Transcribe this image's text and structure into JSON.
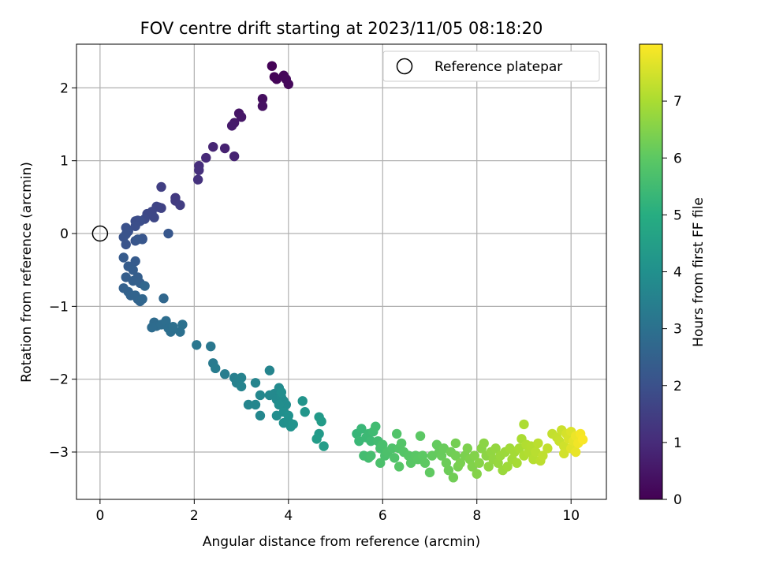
{
  "chart_data": {
    "type": "scatter",
    "title": "FOV centre drift starting at 2023/11/05 08:18:20",
    "xlabel": "Angular distance from reference (arcmin)",
    "ylabel": "Rotation from reference (arcmin)",
    "xlim": [
      -0.5,
      10.75
    ],
    "ylim": [
      -3.65,
      2.6
    ],
    "xticks": [
      0,
      2,
      4,
      6,
      8,
      10
    ],
    "yticks": [
      -3,
      -2,
      -1,
      0,
      1,
      2
    ],
    "grid": true,
    "legend_position": "top-right",
    "legend": [
      {
        "label": "Reference platepar",
        "marker": "open-circle"
      }
    ],
    "reference_point": {
      "x": 0,
      "y": 0
    },
    "colorbar": {
      "label": "Hours from first FF file",
      "colormap": "viridis",
      "range": [
        0,
        8
      ],
      "ticks": [
        0,
        1,
        2,
        3,
        4,
        5,
        6,
        7
      ]
    },
    "points": [
      [
        3.65,
        2.3,
        0.05
      ],
      [
        3.7,
        2.15,
        0.08
      ],
      [
        3.75,
        2.12,
        0.1
      ],
      [
        3.9,
        2.17,
        0.12
      ],
      [
        3.95,
        2.12,
        0.15
      ],
      [
        4.0,
        2.05,
        0.18
      ],
      [
        3.45,
        1.85,
        0.3
      ],
      [
        3.45,
        1.75,
        0.35
      ],
      [
        2.95,
        1.65,
        0.45
      ],
      [
        3.0,
        1.6,
        0.5
      ],
      [
        2.85,
        1.52,
        0.55
      ],
      [
        2.8,
        1.48,
        0.6
      ],
      [
        2.65,
        1.17,
        0.75
      ],
      [
        2.85,
        1.06,
        0.8
      ],
      [
        2.4,
        1.19,
        0.85
      ],
      [
        2.25,
        1.04,
        0.95
      ],
      [
        2.1,
        0.93,
        1.05
      ],
      [
        2.1,
        0.87,
        1.1
      ],
      [
        2.08,
        0.74,
        1.15
      ],
      [
        1.6,
        0.49,
        1.35
      ],
      [
        1.6,
        0.45,
        1.4
      ],
      [
        1.7,
        0.39,
        1.45
      ],
      [
        1.3,
        0.64,
        1.5
      ],
      [
        1.25,
        0.36,
        1.55
      ],
      [
        1.3,
        0.35,
        1.6
      ],
      [
        1.2,
        0.37,
        1.65
      ],
      [
        1.1,
        0.3,
        1.7
      ],
      [
        1.15,
        0.22,
        1.72
      ],
      [
        1.0,
        0.27,
        1.75
      ],
      [
        0.95,
        0.2,
        1.8
      ],
      [
        0.8,
        0.18,
        1.85
      ],
      [
        0.75,
        0.17,
        1.9
      ],
      [
        0.85,
        0.17,
        1.92
      ],
      [
        0.75,
        0.1,
        1.95
      ],
      [
        0.55,
        0.08,
        2.0
      ],
      [
        0.6,
        0.03,
        2.02
      ],
      [
        0.55,
        -0.01,
        2.05
      ],
      [
        0.5,
        -0.05,
        2.08
      ],
      [
        0.55,
        -0.15,
        2.1
      ],
      [
        0.75,
        -0.1,
        2.12
      ],
      [
        0.9,
        -0.08,
        2.15
      ],
      [
        0.9,
        -0.07,
        2.17
      ],
      [
        0.8,
        -0.08,
        2.18
      ],
      [
        1.45,
        0.0,
        2.2
      ],
      [
        0.5,
        -0.33,
        2.3
      ],
      [
        0.75,
        -0.38,
        2.32
      ],
      [
        0.6,
        -0.45,
        2.35
      ],
      [
        0.7,
        -0.5,
        2.38
      ],
      [
        0.55,
        -0.6,
        2.4
      ],
      [
        0.8,
        -0.6,
        2.42
      ],
      [
        0.7,
        -0.65,
        2.45
      ],
      [
        0.85,
        -0.68,
        2.48
      ],
      [
        0.5,
        -0.75,
        2.5
      ],
      [
        0.6,
        -0.8,
        2.52
      ],
      [
        0.65,
        -0.85,
        2.55
      ],
      [
        0.75,
        -0.85,
        2.58
      ],
      [
        0.8,
        -0.9,
        2.6
      ],
      [
        0.85,
        -0.93,
        2.62
      ],
      [
        0.9,
        -0.9,
        2.65
      ],
      [
        0.95,
        -0.72,
        2.68
      ],
      [
        1.35,
        -0.89,
        2.7
      ],
      [
        1.15,
        -1.22,
        2.8
      ],
      [
        1.2,
        -1.27,
        2.82
      ],
      [
        1.1,
        -1.29,
        2.85
      ],
      [
        1.3,
        -1.25,
        2.88
      ],
      [
        1.4,
        -1.2,
        2.9
      ],
      [
        1.45,
        -1.3,
        2.92
      ],
      [
        1.5,
        -1.35,
        2.94
      ],
      [
        1.55,
        -1.28,
        2.96
      ],
      [
        1.7,
        -1.35,
        2.98
      ],
      [
        1.75,
        -1.25,
        3.0
      ],
      [
        2.05,
        -1.53,
        3.15
      ],
      [
        2.35,
        -1.55,
        3.2
      ],
      [
        2.4,
        -1.78,
        3.3
      ],
      [
        2.45,
        -1.85,
        3.35
      ],
      [
        2.65,
        -1.93,
        3.4
      ],
      [
        2.85,
        -1.98,
        3.45
      ],
      [
        2.95,
        -2.0,
        3.5
      ],
      [
        2.9,
        -2.05,
        3.52
      ],
      [
        3.0,
        -1.98,
        3.55
      ],
      [
        3.0,
        -2.1,
        3.58
      ],
      [
        3.3,
        -2.05,
        3.6
      ],
      [
        3.6,
        -1.88,
        3.62
      ],
      [
        3.15,
        -2.35,
        3.65
      ],
      [
        3.3,
        -2.35,
        3.68
      ],
      [
        3.4,
        -2.5,
        3.7
      ],
      [
        3.4,
        -2.22,
        3.72
      ],
      [
        3.6,
        -2.22,
        3.75
      ],
      [
        3.7,
        -2.2,
        3.77
      ],
      [
        3.75,
        -2.28,
        3.8
      ],
      [
        3.8,
        -2.12,
        3.82
      ],
      [
        3.85,
        -2.25,
        3.85
      ],
      [
        3.9,
        -2.3,
        3.87
      ],
      [
        3.95,
        -2.35,
        3.9
      ],
      [
        3.85,
        -2.18,
        3.92
      ],
      [
        3.8,
        -2.35,
        3.93
      ],
      [
        3.75,
        -2.5,
        3.95
      ],
      [
        3.9,
        -2.45,
        3.97
      ],
      [
        3.9,
        -2.6,
        4.0
      ],
      [
        4.0,
        -2.5,
        4.02
      ],
      [
        4.0,
        -2.58,
        4.05
      ],
      [
        4.05,
        -2.65,
        4.08
      ],
      [
        4.1,
        -2.62,
        4.1
      ],
      [
        4.3,
        -2.3,
        4.15
      ],
      [
        4.35,
        -2.45,
        4.2
      ],
      [
        4.65,
        -2.52,
        4.3
      ],
      [
        4.65,
        -2.75,
        4.35
      ],
      [
        4.7,
        -2.58,
        4.38
      ],
      [
        4.6,
        -2.82,
        4.4
      ],
      [
        4.75,
        -2.92,
        4.45
      ],
      [
        5.45,
        -2.75,
        5.3
      ],
      [
        5.55,
        -2.68,
        5.35
      ],
      [
        5.5,
        -2.85,
        5.38
      ],
      [
        5.65,
        -2.8,
        5.4
      ],
      [
        5.7,
        -2.75,
        5.42
      ],
      [
        5.75,
        -2.85,
        5.45
      ],
      [
        5.8,
        -2.72,
        5.47
      ],
      [
        5.85,
        -2.65,
        5.5
      ],
      [
        5.9,
        -2.85,
        5.52
      ],
      [
        5.6,
        -3.05,
        5.55
      ],
      [
        5.7,
        -3.08,
        5.57
      ],
      [
        5.75,
        -3.05,
        5.6
      ],
      [
        5.95,
        -2.95,
        5.62
      ],
      [
        6.0,
        -2.9,
        5.65
      ],
      [
        6.05,
        -3.05,
        5.67
      ],
      [
        5.95,
        -3.15,
        5.7
      ],
      [
        6.1,
        -3.0,
        5.72
      ],
      [
        6.2,
        -2.95,
        5.75
      ],
      [
        6.25,
        -3.08,
        5.77
      ],
      [
        6.3,
        -2.75,
        5.8
      ],
      [
        6.35,
        -2.95,
        5.82
      ],
      [
        6.4,
        -2.88,
        5.84
      ],
      [
        6.45,
        -3.0,
        5.86
      ],
      [
        6.35,
        -3.2,
        5.88
      ],
      [
        6.55,
        -3.05,
        5.9
      ],
      [
        6.6,
        -3.15,
        5.92
      ],
      [
        6.7,
        -3.05,
        5.94
      ],
      [
        6.75,
        -3.1,
        5.96
      ],
      [
        6.8,
        -2.78,
        5.98
      ],
      [
        6.85,
        -3.05,
        6.0
      ],
      [
        6.9,
        -3.15,
        6.02
      ],
      [
        7.0,
        -3.28,
        6.05
      ],
      [
        7.05,
        -3.05,
        6.08
      ],
      [
        7.15,
        -2.9,
        6.1
      ],
      [
        7.2,
        -3.0,
        6.12
      ],
      [
        7.25,
        -3.05,
        6.15
      ],
      [
        7.3,
        -2.95,
        6.17
      ],
      [
        7.35,
        -3.15,
        6.2
      ],
      [
        7.4,
        -3.25,
        6.22
      ],
      [
        7.45,
        -3.0,
        6.25
      ],
      [
        7.5,
        -3.35,
        6.27
      ],
      [
        7.55,
        -3.05,
        6.3
      ],
      [
        7.55,
        -2.88,
        6.32
      ],
      [
        7.6,
        -3.2,
        6.35
      ],
      [
        7.65,
        -3.15,
        6.38
      ],
      [
        7.75,
        -3.05,
        6.4
      ],
      [
        7.8,
        -2.95,
        6.42
      ],
      [
        7.85,
        -3.1,
        6.45
      ],
      [
        7.9,
        -3.2,
        6.48
      ],
      [
        7.95,
        -3.05,
        6.5
      ],
      [
        8.0,
        -3.3,
        6.52
      ],
      [
        8.05,
        -3.15,
        6.55
      ],
      [
        8.1,
        -2.95,
        6.58
      ],
      [
        8.15,
        -2.88,
        6.6
      ],
      [
        8.2,
        -3.05,
        6.62
      ],
      [
        8.25,
        -3.2,
        6.65
      ],
      [
        8.3,
        -3.0,
        6.68
      ],
      [
        8.35,
        -3.1,
        6.7
      ],
      [
        8.4,
        -2.95,
        6.72
      ],
      [
        8.45,
        -3.15,
        6.75
      ],
      [
        8.5,
        -3.05,
        6.78
      ],
      [
        8.55,
        -3.25,
        6.8
      ],
      [
        8.6,
        -3.0,
        6.82
      ],
      [
        8.65,
        -3.2,
        6.85
      ],
      [
        8.7,
        -2.95,
        6.88
      ],
      [
        8.75,
        -3.1,
        6.9
      ],
      [
        8.8,
        -3.0,
        6.92
      ],
      [
        8.85,
        -3.15,
        6.95
      ],
      [
        8.9,
        -2.95,
        6.98
      ],
      [
        8.95,
        -2.82,
        7.0
      ],
      [
        9.0,
        -2.62,
        7.02
      ],
      [
        9.0,
        -3.05,
        7.05
      ],
      [
        9.05,
        -2.9,
        7.08
      ],
      [
        9.1,
        -3.0,
        7.1
      ],
      [
        9.15,
        -2.92,
        7.12
      ],
      [
        9.2,
        -3.1,
        7.15
      ],
      [
        9.25,
        -3.0,
        7.18
      ],
      [
        9.3,
        -2.88,
        7.2
      ],
      [
        9.35,
        -3.12,
        7.22
      ],
      [
        9.4,
        -3.05,
        7.25
      ],
      [
        9.5,
        -2.95,
        7.28
      ],
      [
        9.6,
        -2.75,
        7.3
      ],
      [
        9.7,
        -2.8,
        7.33
      ],
      [
        9.75,
        -2.85,
        7.36
      ],
      [
        9.8,
        -2.7,
        7.4
      ],
      [
        9.85,
        -2.92,
        7.45
      ],
      [
        9.85,
        -3.02,
        7.48
      ],
      [
        9.9,
        -2.75,
        7.52
      ],
      [
        9.95,
        -2.82,
        7.55
      ],
      [
        10.0,
        -2.72,
        7.6
      ],
      [
        10.0,
        -2.95,
        7.65
      ],
      [
        10.05,
        -2.85,
        7.7
      ],
      [
        10.1,
        -3.0,
        7.75
      ],
      [
        10.1,
        -2.78,
        7.8
      ],
      [
        10.15,
        -2.88,
        7.85
      ],
      [
        10.2,
        -2.75,
        7.9
      ],
      [
        10.25,
        -2.83,
        7.95
      ]
    ]
  }
}
